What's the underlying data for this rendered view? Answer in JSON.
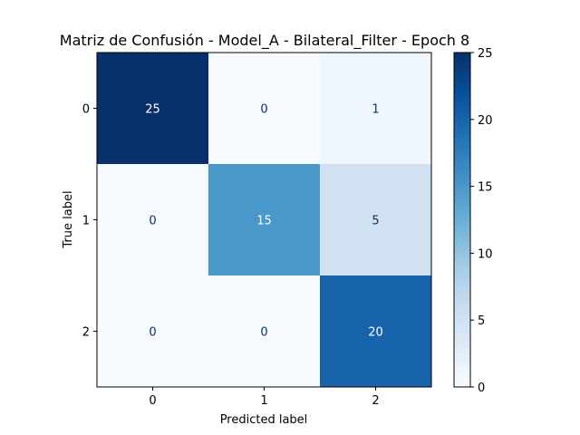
{
  "chart_data": {
    "type": "heatmap",
    "title": "Matriz de Confusión - Model_A - Bilateral_Filter - Epoch 8",
    "xlabel": "Predicted label",
    "ylabel": "True label",
    "x_ticks": [
      "0",
      "1",
      "2"
    ],
    "y_ticks": [
      "0",
      "1",
      "2"
    ],
    "values": [
      [
        25,
        0,
        1
      ],
      [
        0,
        15,
        5
      ],
      [
        0,
        0,
        20
      ]
    ],
    "colormap": "Blues",
    "vmin": 0,
    "vmax": 25,
    "colorbar_ticks": [
      "0",
      "5",
      "10",
      "15",
      "20",
      "25"
    ],
    "colors": {
      "low": "#f7fbff",
      "high": "#08306b",
      "text_dark": "#08306b",
      "text_light": "#ffffff"
    }
  }
}
